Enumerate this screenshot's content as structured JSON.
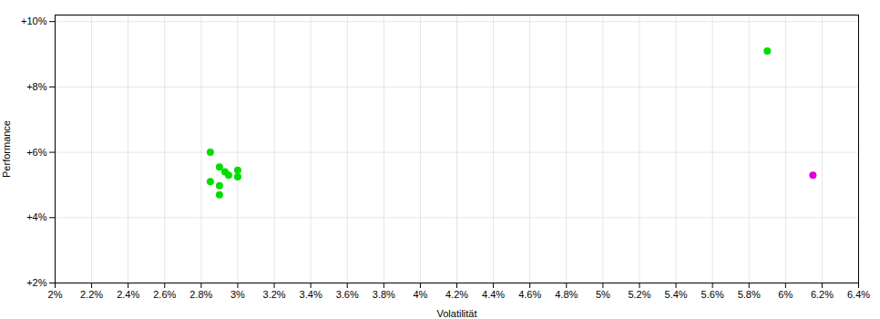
{
  "chart_data": {
    "type": "scatter",
    "xlabel": "Volatilität",
    "ylabel": "Performance",
    "xlim": [
      0.02,
      0.064
    ],
    "ylim": [
      0.02,
      0.102
    ],
    "xticks": [
      {
        "value": 0.02,
        "label": "2%"
      },
      {
        "value": 0.022,
        "label": "2.2%"
      },
      {
        "value": 0.024,
        "label": "2.4%"
      },
      {
        "value": 0.026,
        "label": "2.6%"
      },
      {
        "value": 0.028,
        "label": "2.8%"
      },
      {
        "value": 0.03,
        "label": "3%"
      },
      {
        "value": 0.032,
        "label": "3.2%"
      },
      {
        "value": 0.034,
        "label": "3.4%"
      },
      {
        "value": 0.036,
        "label": "3.6%"
      },
      {
        "value": 0.038,
        "label": "3.8%"
      },
      {
        "value": 0.04,
        "label": "4%"
      },
      {
        "value": 0.042,
        "label": "4.2%"
      },
      {
        "value": 0.044,
        "label": "4.4%"
      },
      {
        "value": 0.046,
        "label": "4.6%"
      },
      {
        "value": 0.048,
        "label": "4.8%"
      },
      {
        "value": 0.05,
        "label": "5%"
      },
      {
        "value": 0.052,
        "label": "5.2%"
      },
      {
        "value": 0.054,
        "label": "5.4%"
      },
      {
        "value": 0.056,
        "label": "5.6%"
      },
      {
        "value": 0.058,
        "label": "5.8%"
      },
      {
        "value": 0.06,
        "label": "6%"
      },
      {
        "value": 0.062,
        "label": "6.2%"
      },
      {
        "value": 0.064,
        "label": "6.4%"
      }
    ],
    "yticks": [
      {
        "value": 0.02,
        "label": "+2%"
      },
      {
        "value": 0.04,
        "label": "+4%"
      },
      {
        "value": 0.06,
        "label": "+6%"
      },
      {
        "value": 0.08,
        "label": "+8%"
      },
      {
        "value": 0.1,
        "label": "+10%"
      }
    ],
    "grid": true,
    "series": [
      {
        "color": "#00dd00",
        "x": [
          0.0285,
          0.029,
          0.0293,
          0.0295,
          0.03,
          0.03,
          0.0285,
          0.029,
          0.029,
          0.059
        ],
        "values": [
          0.06,
          0.0555,
          0.054,
          0.053,
          0.0545,
          0.0525,
          0.051,
          0.0498,
          0.047,
          0.091
        ]
      },
      {
        "color": "#dd00dd",
        "x": [
          0.0615
        ],
        "values": [
          0.053
        ]
      }
    ]
  }
}
